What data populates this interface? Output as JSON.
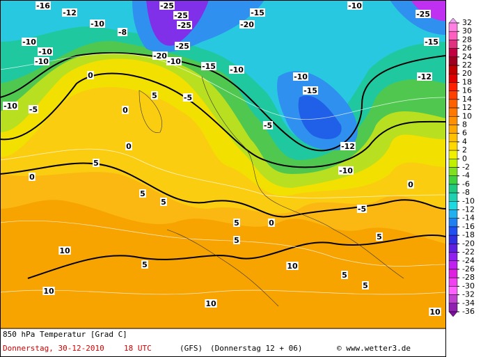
{
  "footer": {
    "title": "850 hPa Temperatur [Grad C]",
    "date": "Donnerstag, 30-12-2010",
    "time": "18 UTC",
    "model": "(GFS)",
    "run": "(Donnerstag 12 + 06)",
    "credit": "© www.wetter3.de"
  },
  "legend": {
    "levels": [
      32,
      30,
      28,
      26,
      24,
      22,
      20,
      18,
      16,
      14,
      12,
      10,
      8,
      6,
      4,
      2,
      0,
      -2,
      -4,
      -6,
      -8,
      -10,
      -12,
      -14,
      -16,
      -18,
      -20,
      -22,
      -24,
      -26,
      -28,
      -30,
      -32,
      -34,
      -36
    ],
    "colors": [
      "#f0a0f0",
      "#ff80e0",
      "#ff60c0",
      "#e03080",
      "#c00040",
      "#a00020",
      "#c00000",
      "#e00000",
      "#ff2000",
      "#ff4000",
      "#ff6000",
      "#ff7800",
      "#ff9000",
      "#ffa800",
      "#ffc000",
      "#ffd800",
      "#f0f000",
      "#c0f000",
      "#80e020",
      "#40d040",
      "#20c880",
      "#20d0b0",
      "#20d8e0",
      "#20b0f0",
      "#2080f0",
      "#2050f0",
      "#3030e0",
      "#6020e0",
      "#9020f0",
      "#c020f0",
      "#e020e0",
      "#f040f0",
      "#ff60ff",
      "#c040d0",
      "#9020b0",
      "#8010a0"
    ]
  },
  "map_labels": [
    -16,
    -12,
    -10,
    -8,
    -10,
    -10,
    -10,
    -10,
    -5,
    -25,
    -25,
    -25,
    -25,
    -20,
    -10,
    -15,
    -10,
    -15,
    -20,
    -10,
    -25,
    -15,
    -12,
    0,
    0,
    0,
    5,
    -5,
    -5,
    -15,
    -10,
    -12,
    -10,
    -5,
    0,
    5,
    0,
    5,
    5,
    5,
    5,
    0,
    10,
    5,
    10,
    10,
    5,
    5,
    10,
    10,
    5
  ]
}
